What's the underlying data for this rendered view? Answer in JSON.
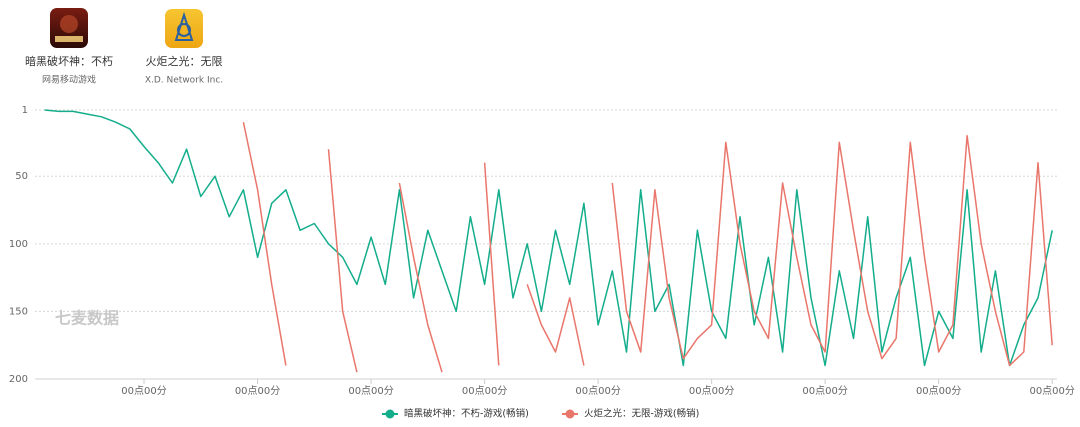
{
  "apps": [
    {
      "name": "暗黑破坏神：不朽",
      "publisher": "网易移动游戏"
    },
    {
      "name": "火炬之光：无限",
      "publisher": "X.D. Network Inc."
    }
  ],
  "chart_data": {
    "type": "line",
    "watermark": "七麦数据",
    "categories": [
      null,
      null,
      null,
      null,
      null,
      null,
      null,
      "00点00分",
      null,
      null,
      null,
      null,
      null,
      null,
      null,
      "00点00分",
      null,
      null,
      null,
      null,
      null,
      null,
      null,
      "00点00分",
      null,
      null,
      null,
      null,
      null,
      null,
      null,
      "00点00分",
      null,
      null,
      null,
      null,
      null,
      null,
      null,
      "00点00分",
      null,
      null,
      null,
      null,
      null,
      null,
      null,
      "00点00分",
      null,
      null,
      null,
      null,
      null,
      null,
      null,
      "00点00分",
      null,
      null,
      null,
      null,
      null,
      null,
      null,
      "00点00分",
      null,
      null,
      null,
      null,
      null,
      null,
      null,
      "00点00分"
    ],
    "ylim": [
      1,
      200
    ],
    "inverted": true,
    "yticks": [
      1,
      50,
      100,
      150,
      200
    ],
    "grid": true,
    "series": [
      {
        "name": "暗黑破坏神：不朽-游戏(畅销)",
        "color": "#14ad8c",
        "values": [
          1,
          2,
          2,
          4,
          6,
          10,
          15,
          28,
          40,
          55,
          30,
          65,
          50,
          80,
          60,
          110,
          70,
          60,
          90,
          85,
          100,
          110,
          130,
          95,
          130,
          60,
          140,
          90,
          120,
          150,
          80,
          130,
          60,
          140,
          100,
          150,
          90,
          130,
          70,
          160,
          120,
          180,
          60,
          150,
          130,
          190,
          90,
          150,
          170,
          80,
          160,
          110,
          180,
          60,
          140,
          190,
          120,
          170,
          80,
          180,
          140,
          110,
          190,
          150,
          170,
          60,
          180,
          120,
          190,
          160,
          140,
          90
        ]
      },
      {
        "name": "火炬之光：无限-游戏(畅销)",
        "color": "#e9766b",
        "values": [
          null,
          null,
          null,
          null,
          null,
          null,
          null,
          null,
          null,
          null,
          null,
          null,
          null,
          null,
          10,
          60,
          130,
          190,
          null,
          null,
          30,
          150,
          195,
          null,
          null,
          55,
          110,
          160,
          195,
          null,
          null,
          40,
          190,
          null,
          130,
          160,
          180,
          140,
          190,
          null,
          55,
          150,
          180,
          60,
          140,
          185,
          170,
          160,
          25,
          100,
          150,
          170,
          55,
          110,
          160,
          180,
          25,
          90,
          150,
          185,
          170,
          25,
          110,
          180,
          160,
          20,
          100,
          150,
          190,
          180,
          40,
          175
        ]
      }
    ]
  }
}
